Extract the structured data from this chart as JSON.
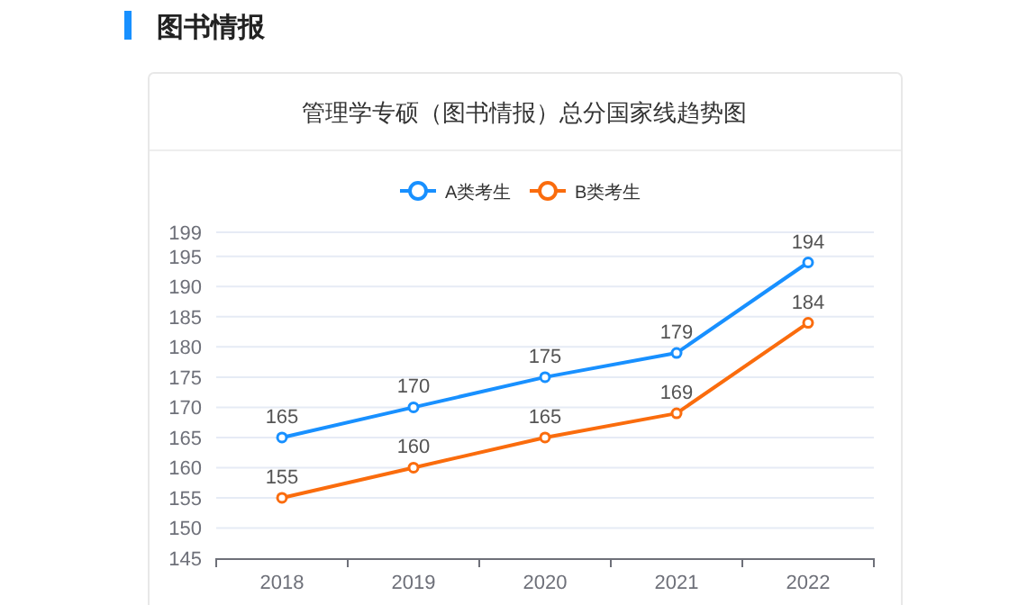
{
  "chart_data": {
    "type": "line",
    "title": "管理学专硕（图书情报）总分国家线趋势图",
    "annotations": [
      "图书情报"
    ],
    "categories": [
      "2018",
      "2019",
      "2020",
      "2021",
      "2022"
    ],
    "series": [
      {
        "name": "A类考生",
        "color": "#1890ff",
        "values": [
          165,
          170,
          175,
          179,
          194
        ]
      },
      {
        "name": "B类考生",
        "color": "#fa6c0d",
        "values": [
          155,
          160,
          165,
          169,
          184
        ]
      }
    ],
    "ylim": [
      145,
      199
    ],
    "yticks": [
      145,
      150,
      155,
      160,
      165,
      170,
      175,
      180,
      185,
      190,
      195,
      199
    ],
    "grid": "y",
    "legend": "top",
    "marker": "circle",
    "line_style": "solid",
    "data_labels": true
  }
}
